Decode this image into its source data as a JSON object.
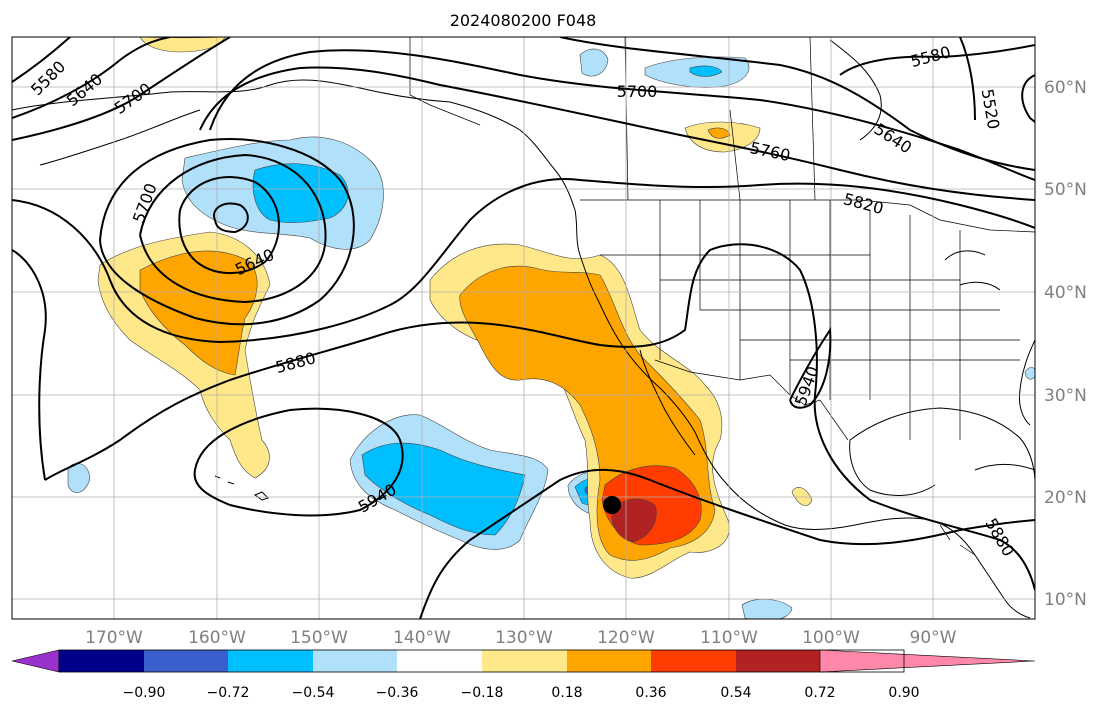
{
  "title": "2024080200 F048",
  "map": {
    "lon_range": [
      -180,
      -80
    ],
    "lat_range": [
      7,
      65
    ],
    "gridlines": true,
    "lon_ticks": [
      "170°W",
      "160°W",
      "150°W",
      "140°W",
      "130°W",
      "120°W",
      "110°W",
      "100°W",
      "90°W"
    ],
    "lat_ticks": [
      "60°N",
      "50°N",
      "40°N",
      "30°N",
      "20°N",
      "10°N"
    ],
    "contour_labels": [
      "5580",
      "5640",
      "5700",
      "5700",
      "5580",
      "5520",
      "5640",
      "5760",
      "5820",
      "5700",
      "5640",
      "5880",
      "5940",
      "5940",
      "5880"
    ],
    "marker": "storm-center-dot"
  },
  "colorbar": {
    "tick_labels": [
      "−0.90",
      "−0.72",
      "−0.54",
      "−0.36",
      "−0.18",
      "0.18",
      "0.36",
      "0.54",
      "0.72",
      "0.90"
    ],
    "colors": [
      "#9932cc",
      "#00008b",
      "#3a5fcd",
      "#00bfff",
      "#b0e0fa",
      "#ffffff",
      "#ffe88a",
      "#ffa500",
      "#ff3d00",
      "#b22222",
      "#ff88aa"
    ],
    "extend": "both"
  }
}
